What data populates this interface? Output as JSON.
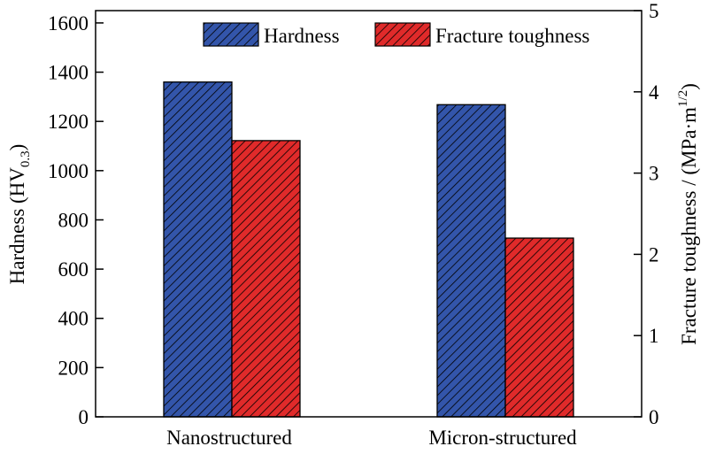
{
  "chart_data": {
    "type": "bar",
    "categories": [
      "Nanostructured",
      "Micron-structured"
    ],
    "series": [
      {
        "name": "Hardness",
        "axis": "left",
        "values": [
          1360,
          1268
        ],
        "color": "#3355aa"
      },
      {
        "name": "Fracture toughness",
        "axis": "right",
        "values": [
          3.4,
          2.2
        ],
        "color": "#e02a2a"
      }
    ],
    "y_left": {
      "label": "Hardness (HV",
      "label_sub": "0.3",
      "label_end": ")",
      "ylim": [
        0,
        1650
      ],
      "ticks": [
        0,
        200,
        400,
        600,
        800,
        1000,
        1200,
        1400,
        1600
      ]
    },
    "y_right": {
      "label": "Fracture toughness / (MPa·m",
      "label_sup": "1/2",
      "label_end": ")",
      "ylim": [
        0,
        5
      ],
      "ticks": [
        0,
        1,
        2,
        3,
        4,
        5
      ]
    },
    "legend_position": "top-right",
    "grid": false,
    "fill_pattern": "diagonal-hatch"
  }
}
